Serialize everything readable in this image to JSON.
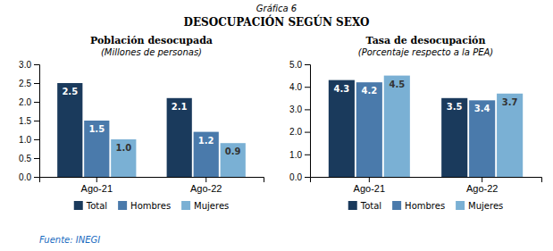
{
  "title": "Gráfica 6",
  "subtitle": "DESOCUPACIÓN SEGÚN SEXO",
  "annotations": [
    "Fuente: INEGI"
  ],
  "chart_data": [
    {
      "type": "bar",
      "title": "Población desocupada",
      "subtitle": "(Millones de personas)",
      "categories": [
        "Ago-21",
        "Ago-22"
      ],
      "series": [
        {
          "name": "Total",
          "color": "#1a3a5c",
          "values": [
            2.5,
            2.1
          ],
          "value_labels": [
            "2.5",
            "2.1"
          ]
        },
        {
          "name": "Hombres",
          "color": "#4a7aab",
          "values": [
            1.5,
            1.2
          ],
          "value_labels": [
            "1.5",
            "1.2"
          ]
        },
        {
          "name": "Mujeres",
          "color": "#7ab0d4",
          "values": [
            1.0,
            0.9
          ],
          "value_labels": [
            "1.0",
            "0.9"
          ]
        }
      ],
      "ylim": [
        0,
        3.0
      ],
      "yticks": [
        {
          "value": 0,
          "label": "0.0"
        },
        0.5,
        {
          "value": 1,
          "label": "1.0"
        },
        1.5,
        {
          "value": 2,
          "label": "2.0"
        },
        2.5,
        {
          "value": 3,
          "label": "3.0"
        }
      ],
      "data_labels": true,
      "grid": false,
      "legend": "bottom"
    },
    {
      "type": "bar",
      "title": "Tasa de desocupación",
      "subtitle": "(Porcentaje respecto a la PEA)",
      "categories": [
        "Ago-21",
        "Ago-22"
      ],
      "series": [
        {
          "name": "Total",
          "color": "#1a3a5c",
          "values": [
            4.3,
            3.5
          ],
          "value_labels": [
            "4.3",
            "3.5"
          ]
        },
        {
          "name": "Hombres",
          "color": "#4a7aab",
          "values": [
            4.2,
            3.4
          ],
          "value_labels": [
            "4.2",
            "3.4"
          ]
        },
        {
          "name": "Mujeres",
          "color": "#7ab0d4",
          "values": [
            4.5,
            3.7
          ],
          "value_labels": [
            "4.5",
            "3.7"
          ]
        }
      ],
      "ylim": [
        0,
        5.0
      ],
      "yticks": [
        {
          "value": 0,
          "label": "0.0"
        },
        {
          "value": 1,
          "label": "1.0"
        },
        {
          "value": 2,
          "label": "2.0"
        },
        {
          "value": 3,
          "label": "3.0"
        },
        {
          "value": 4,
          "label": "4.0"
        },
        {
          "value": 5,
          "label": "5.0"
        }
      ],
      "data_labels": true,
      "grid": false,
      "legend": "bottom"
    }
  ]
}
